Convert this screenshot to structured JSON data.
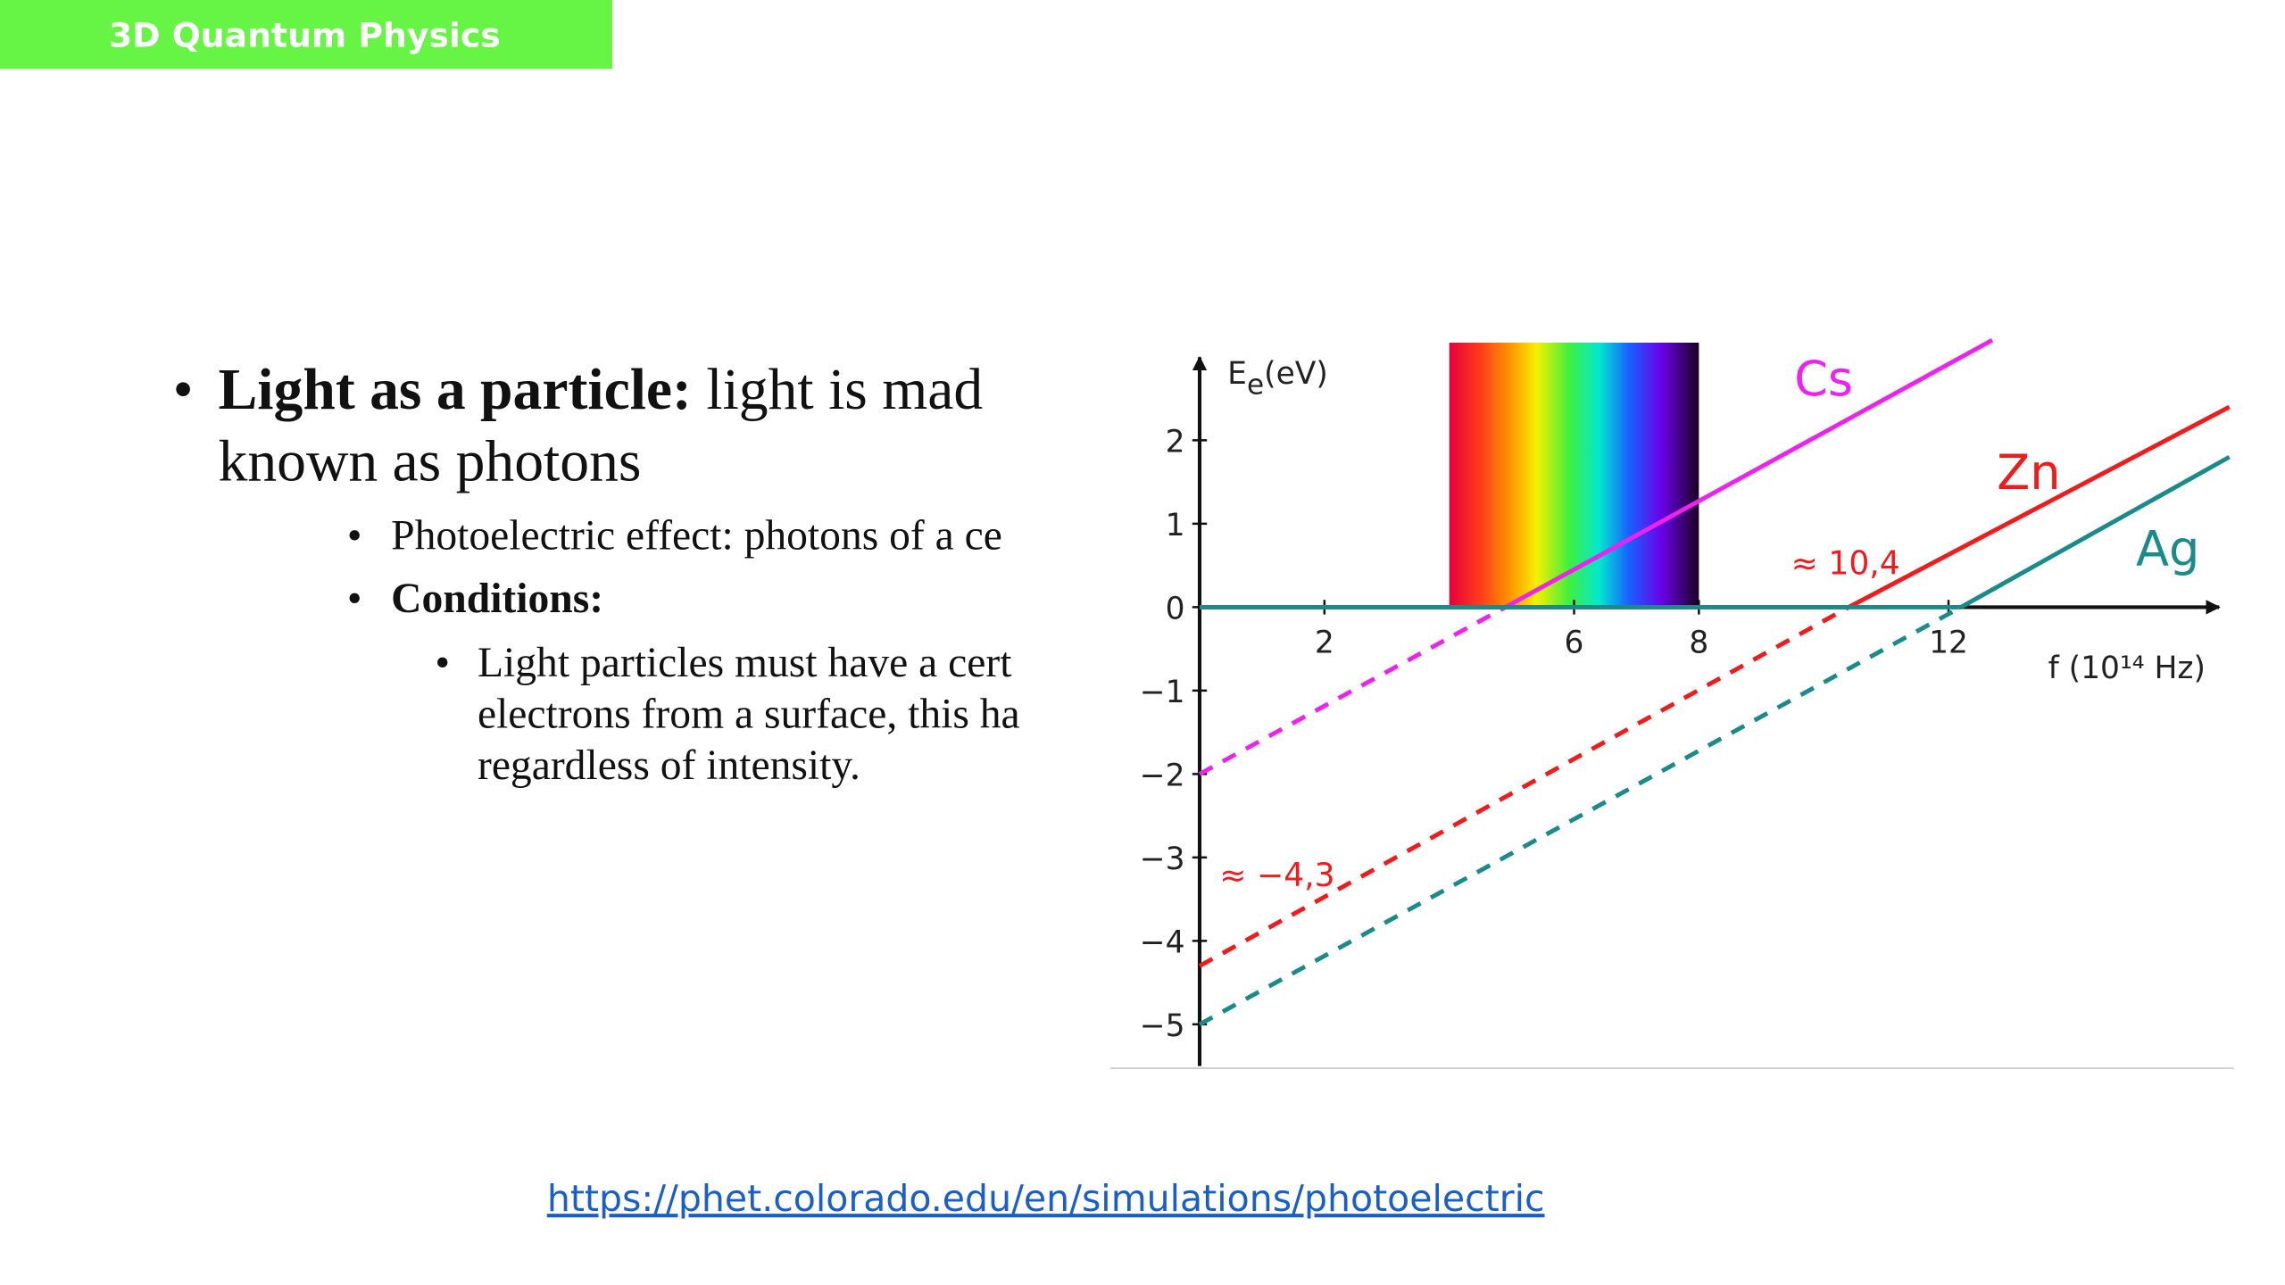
{
  "header": {
    "title": "3D Quantum Physics"
  },
  "content": {
    "bullet": {
      "bold": "Light as a particle:",
      "text": "light is mad",
      "line2": "known as photons"
    },
    "sub_bullets": [
      "Photoelectric effect: photons of a ce",
      "Conditions:"
    ],
    "sub_sub_bullet": [
      "Light particles must have a cert",
      "electrons from a surface, this ha",
      "regardless of intensity."
    ]
  },
  "link": "https://phet.colorado.edu/en/simulations/photoelectric",
  "chart_data": {
    "type": "line",
    "ylabel": {
      "main": "E",
      "sub": "e",
      "unit": "(eV)"
    },
    "xlabel": "f (10¹⁴ Hz)",
    "xlim": [
      0,
      16.5
    ],
    "ylim": [
      -5.5,
      3.1
    ],
    "xticks": [
      2,
      6,
      8,
      12
    ],
    "yticks": [
      {
        "value": -5,
        "label": "−5"
      },
      {
        "value": -4,
        "label": "−4"
      },
      {
        "value": -3,
        "label": "−3"
      },
      {
        "value": -2,
        "label": "−2"
      },
      {
        "value": -1,
        "label": "−1"
      },
      0,
      1,
      2
    ],
    "visible_band": [
      4,
      8
    ],
    "series": [
      {
        "name": "Cs",
        "color": "#ee22ee",
        "x": [
          0,
          4.9,
          12.7
        ],
        "values": [
          -2,
          0,
          3.2
        ]
      },
      {
        "name": "Zn",
        "color": "#ee1c1c",
        "x": [
          0,
          10.4,
          16.5
        ],
        "values": [
          -4.3,
          0,
          2.4
        ]
      },
      {
        "name": "Ag",
        "color": "#1a8a8a",
        "x": [
          0,
          12.2,
          16.5
        ],
        "values": [
          -5,
          0,
          1.8
        ]
      }
    ],
    "annotations": [
      {
        "text": "≈ 10,4",
        "color": "#ee1c1c"
      },
      {
        "text": "≈ −4,3",
        "color": "#ee1c1c"
      }
    ]
  }
}
